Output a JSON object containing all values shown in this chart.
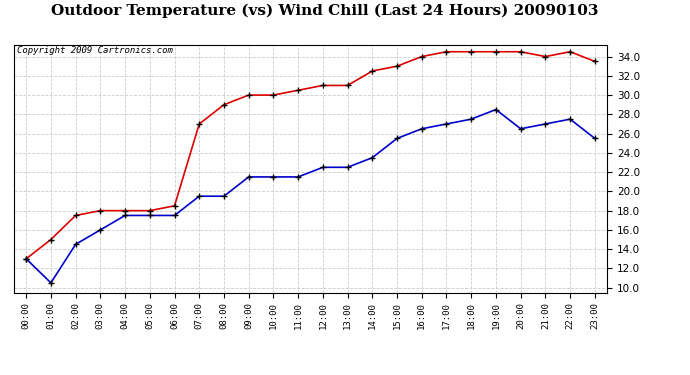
{
  "title": "Outdoor Temperature (vs) Wind Chill (Last 24 Hours) 20090103",
  "copyright": "Copyright 2009 Cartronics.com",
  "hours": [
    "00:00",
    "01:00",
    "02:00",
    "03:00",
    "04:00",
    "05:00",
    "06:00",
    "07:00",
    "08:00",
    "09:00",
    "10:00",
    "11:00",
    "12:00",
    "13:00",
    "14:00",
    "15:00",
    "16:00",
    "17:00",
    "18:00",
    "19:00",
    "20:00",
    "21:00",
    "22:00",
    "23:00"
  ],
  "temp": [
    13.0,
    15.0,
    17.5,
    18.0,
    18.0,
    18.0,
    18.5,
    27.0,
    29.0,
    30.0,
    30.0,
    30.5,
    31.0,
    31.0,
    32.5,
    33.0,
    34.0,
    34.5,
    34.5,
    34.5,
    34.5,
    34.0,
    34.5,
    33.5
  ],
  "windchill": [
    13.0,
    10.5,
    14.5,
    16.0,
    17.5,
    17.5,
    17.5,
    19.5,
    19.5,
    21.5,
    21.5,
    21.5,
    22.5,
    22.5,
    23.5,
    25.5,
    26.5,
    27.0,
    27.5,
    28.5,
    26.5,
    27.0,
    27.5,
    25.5
  ],
  "temp_color": "#dd0000",
  "windchill_color": "#0000cc",
  "yticks": [
    10.0,
    12.0,
    14.0,
    16.0,
    18.0,
    20.0,
    22.0,
    24.0,
    26.0,
    28.0,
    30.0,
    32.0,
    34.0
  ],
  "background_color": "#ffffff",
  "plot_bg_color": "#ffffff",
  "grid_color": "#cccccc",
  "title_fontsize": 11,
  "copyright_fontsize": 6.5,
  "marker": "+",
  "marker_size": 5,
  "marker_color": "#000000",
  "line_width": 1.2
}
